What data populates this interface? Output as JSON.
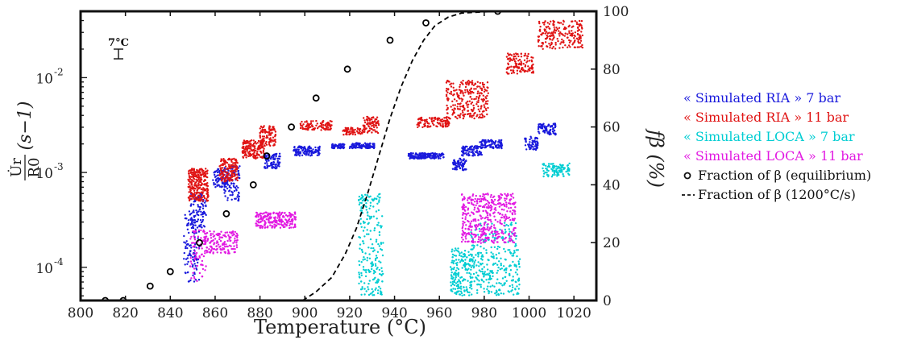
{
  "chart_data": {
    "type": "scatter",
    "xlabel": "Temperature (°C)",
    "xlim": [
      800,
      1030
    ],
    "x_ticks": [
      "800",
      "820",
      "840",
      "860",
      "880",
      "900",
      "920",
      "940",
      "960",
      "980",
      "1000",
      "1020"
    ],
    "x_tick_values": [
      800,
      820,
      840,
      860,
      880,
      900,
      920,
      940,
      960,
      980,
      1000,
      1020
    ],
    "ylabel_left": {
      "numerator": "U̇r",
      "denominator": "R0",
      "unit": "(s−1)"
    },
    "ylim_left_log": [
      -4.35,
      -1.3
    ],
    "y_left_ticks": [
      {
        "mantissa": "10",
        "exp": "-4",
        "value": 0.0001
      },
      {
        "mantissa": "10",
        "exp": "-3",
        "value": 0.001
      },
      {
        "mantissa": "10",
        "exp": "-2",
        "value": 0.01
      }
    ],
    "ylabel_right": "fβ (%)",
    "ylim_right": [
      0,
      100
    ],
    "y_right_ticks": [
      "0",
      "20",
      "40",
      "60",
      "80",
      "100"
    ],
    "y_right_tick_values": [
      0,
      20,
      40,
      60,
      80,
      100
    ],
    "error_bar_label": "7°C",
    "series": [
      {
        "name": "« Simulated RIA » 7 bar",
        "color": "#1a1adc",
        "axis": "left",
        "clusters": [
          {
            "x0": 846,
            "x1": 853,
            "y0": 7e-05,
            "y1": 0.0004,
            "n": 110
          },
          {
            "x0": 849,
            "x1": 856,
            "y0": 0.00025,
            "y1": 0.0006,
            "n": 90
          },
          {
            "x0": 859,
            "x1": 866,
            "y0": 0.0007,
            "y1": 0.0011,
            "n": 90
          },
          {
            "x0": 864,
            "x1": 871,
            "y0": 0.0005,
            "y1": 0.0012,
            "n": 90
          },
          {
            "x0": 882,
            "x1": 889,
            "y0": 0.0011,
            "y1": 0.0016,
            "n": 90
          },
          {
            "x0": 895,
            "x1": 907,
            "y0": 0.0015,
            "y1": 0.0019,
            "n": 120
          },
          {
            "x0": 912,
            "x1": 918,
            "y0": 0.0018,
            "y1": 0.002,
            "n": 60
          },
          {
            "x0": 920,
            "x1": 931,
            "y0": 0.0018,
            "y1": 0.00205,
            "n": 120
          },
          {
            "x0": 946,
            "x1": 954,
            "y0": 0.0014,
            "y1": 0.0016,
            "n": 100
          },
          {
            "x0": 953,
            "x1": 962,
            "y0": 0.0014,
            "y1": 0.0016,
            "n": 100
          },
          {
            "x0": 966,
            "x1": 972,
            "y0": 0.00105,
            "y1": 0.0014,
            "n": 70
          },
          {
            "x0": 970,
            "x1": 979,
            "y0": 0.0015,
            "y1": 0.0019,
            "n": 90
          },
          {
            "x0": 978,
            "x1": 988,
            "y0": 0.0018,
            "y1": 0.0022,
            "n": 90
          },
          {
            "x0": 998,
            "x1": 1004,
            "y0": 0.0017,
            "y1": 0.0024,
            "n": 60
          },
          {
            "x0": 1004,
            "x1": 1012,
            "y0": 0.0025,
            "y1": 0.0033,
            "n": 80
          }
        ]
      },
      {
        "name": "« Simulated RIA » 11 bar",
        "color": "#e01414",
        "axis": "left",
        "clusters": [
          {
            "x0": 848,
            "x1": 857,
            "y0": 0.0005,
            "y1": 0.0011,
            "n": 260
          },
          {
            "x0": 862,
            "x1": 870,
            "y0": 0.0008,
            "y1": 0.0014,
            "n": 150
          },
          {
            "x0": 872,
            "x1": 882,
            "y0": 0.0014,
            "y1": 0.0022,
            "n": 160
          },
          {
            "x0": 880,
            "x1": 887,
            "y0": 0.0019,
            "y1": 0.0031,
            "n": 110
          },
          {
            "x0": 898,
            "x1": 912,
            "y0": 0.0028,
            "y1": 0.0035,
            "n": 100
          },
          {
            "x0": 917,
            "x1": 926,
            "y0": 0.0025,
            "y1": 0.003,
            "n": 60
          },
          {
            "x0": 926,
            "x1": 933,
            "y0": 0.0026,
            "y1": 0.0039,
            "n": 80
          },
          {
            "x0": 950,
            "x1": 965,
            "y0": 0.003,
            "y1": 0.0038,
            "n": 110
          },
          {
            "x0": 963,
            "x1": 982,
            "y0": 0.0037,
            "y1": 0.0093,
            "n": 250
          },
          {
            "x0": 990,
            "x1": 1002,
            "y0": 0.011,
            "y1": 0.018,
            "n": 120
          },
          {
            "x0": 1004,
            "x1": 1024,
            "y0": 0.02,
            "y1": 0.04,
            "n": 200
          }
        ]
      },
      {
        "name": "« Simulated LOCA » 7 bar",
        "color": "#00cdd2",
        "axis": "left",
        "clusters": [
          {
            "x0": 924,
            "x1": 935,
            "y0": 5e-05,
            "y1": 0.0006,
            "n": 220
          },
          {
            "x0": 965,
            "x1": 975,
            "y0": 5e-05,
            "y1": 0.00016,
            "n": 180
          },
          {
            "x0": 974,
            "x1": 996,
            "y0": 5e-05,
            "y1": 0.0003,
            "n": 300
          },
          {
            "x0": 1006,
            "x1": 1018,
            "y0": 0.0009,
            "y1": 0.00125,
            "n": 100
          }
        ]
      },
      {
        "name": "« Simulated LOCA » 11 bar",
        "color": "#e21ae2",
        "axis": "left",
        "clusters": [
          {
            "x0": 849,
            "x1": 856,
            "y0": 7e-05,
            "y1": 0.00025,
            "n": 70
          },
          {
            "x0": 855,
            "x1": 870,
            "y0": 0.00014,
            "y1": 0.00024,
            "n": 150
          },
          {
            "x0": 878,
            "x1": 896,
            "y0": 0.00026,
            "y1": 0.00038,
            "n": 220
          },
          {
            "x0": 970,
            "x1": 994,
            "y0": 0.00018,
            "y1": 0.0006,
            "n": 420
          }
        ]
      },
      {
        "name": "Fraction of β (equilibrium)",
        "color": "#000000",
        "axis": "right",
        "marker": "circle",
        "points": [
          [
            811,
            0
          ],
          [
            819,
            0
          ],
          [
            831,
            5
          ],
          [
            840,
            10
          ],
          [
            853,
            20
          ],
          [
            865,
            30
          ],
          [
            877,
            40
          ],
          [
            883,
            50
          ],
          [
            894,
            60
          ],
          [
            905,
            70
          ],
          [
            919,
            80
          ],
          [
            938,
            90
          ],
          [
            954,
            96
          ],
          [
            986,
            100
          ]
        ]
      },
      {
        "name": "Fraction of β (1200°C/s)",
        "color": "#000000",
        "axis": "right",
        "style": "dashed",
        "points": [
          [
            899,
            0
          ],
          [
            905,
            3
          ],
          [
            912,
            8
          ],
          [
            918,
            16
          ],
          [
            923,
            25
          ],
          [
            928,
            37
          ],
          [
            933,
            50
          ],
          [
            938,
            63
          ],
          [
            943,
            74
          ],
          [
            948,
            83
          ],
          [
            953,
            90
          ],
          [
            958,
            95
          ],
          [
            964,
            98
          ],
          [
            970,
            99.4
          ],
          [
            980,
            99.8
          ],
          [
            990,
            100
          ]
        ]
      }
    ],
    "legend_position": "right-outside"
  },
  "legend": {
    "items": [
      {
        "label": "« Simulated RIA » 7 bar",
        "color": "#1a1adc",
        "type": "text"
      },
      {
        "label": "« Simulated RIA » 11 bar",
        "color": "#e01414",
        "type": "text"
      },
      {
        "label": "« Simulated LOCA  » 7 bar",
        "color": "#00cdd2",
        "type": "text"
      },
      {
        "label": "« Simulated LOCA » 11 bar",
        "color": "#e21ae2",
        "type": "text"
      },
      {
        "label": "Fraction of β (equilibrium)",
        "color": "#111111",
        "type": "circle"
      },
      {
        "label": "Fraction of β (1200°C/s)",
        "color": "#111111",
        "type": "dash"
      }
    ]
  }
}
